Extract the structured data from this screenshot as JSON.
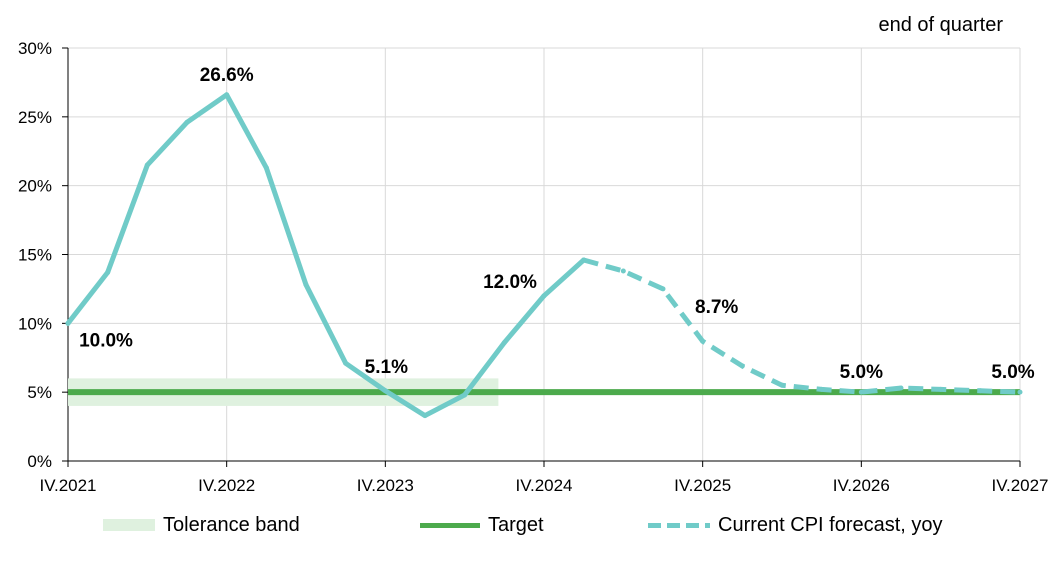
{
  "chart_data": {
    "type": "line",
    "note": "end of quarter",
    "x": [
      "IV.2021",
      "I.2022",
      "II.2022",
      "III.2022",
      "IV.2022",
      "I.2023",
      "II.2023",
      "III.2023",
      "IV.2023",
      "I.2024",
      "II.2024",
      "III.2024",
      "IV.2024",
      "I.2025",
      "II.2025",
      "III.2025",
      "IV.2025",
      "I.2026",
      "II.2026",
      "III.2026",
      "IV.2026",
      "I.2027",
      "II.2027",
      "III.2027",
      "IV.2027"
    ],
    "x_tick_labels": [
      "IV.2021",
      "IV.2022",
      "IV.2023",
      "IV.2024",
      "IV.2025",
      "IV.2026",
      "IV.2027"
    ],
    "y_tick_labels": [
      "0%",
      "5%",
      "10%",
      "15%",
      "20%",
      "25%",
      "30%"
    ],
    "ylim": [
      0,
      30
    ],
    "grid": true,
    "legend_position": "bottom",
    "series": [
      {
        "name": "Current CPI forecast, yoy",
        "color": "#70cbc8",
        "actual": [
          10.0,
          13.7,
          21.5,
          24.6,
          26.6,
          21.3,
          12.8,
          7.1,
          5.1,
          3.3,
          4.8,
          8.6,
          12.0,
          14.6,
          13.8,
          12.5,
          8.7,
          6.9,
          5.5,
          5.2,
          5.0,
          5.3,
          5.2,
          5.1,
          5.0
        ],
        "actual_until_index": 13
      },
      {
        "name": "Target",
        "color": "#4caa4c",
        "value": 5.0
      },
      {
        "name": "Tolerance band",
        "color": "#dff1df",
        "range": [
          4,
          6
        ],
        "until": "II.2024"
      }
    ],
    "annotations": [
      {
        "x": "IV.2021",
        "text": "10.0%"
      },
      {
        "x": "IV.2022",
        "text": "26.6%"
      },
      {
        "x": "IV.2023",
        "text": "5.1%"
      },
      {
        "x": "IV.2024",
        "text": "12.0%"
      },
      {
        "x": "IV.2025",
        "text": "8.7%"
      },
      {
        "x": "IV.2026",
        "text": "5.0%"
      },
      {
        "x": "IV.2027",
        "text": "5.0%"
      }
    ]
  },
  "legend": {
    "band_label": "Tolerance band",
    "target_label": "Target",
    "forecast_label": "Current CPI forecast, yoy"
  }
}
